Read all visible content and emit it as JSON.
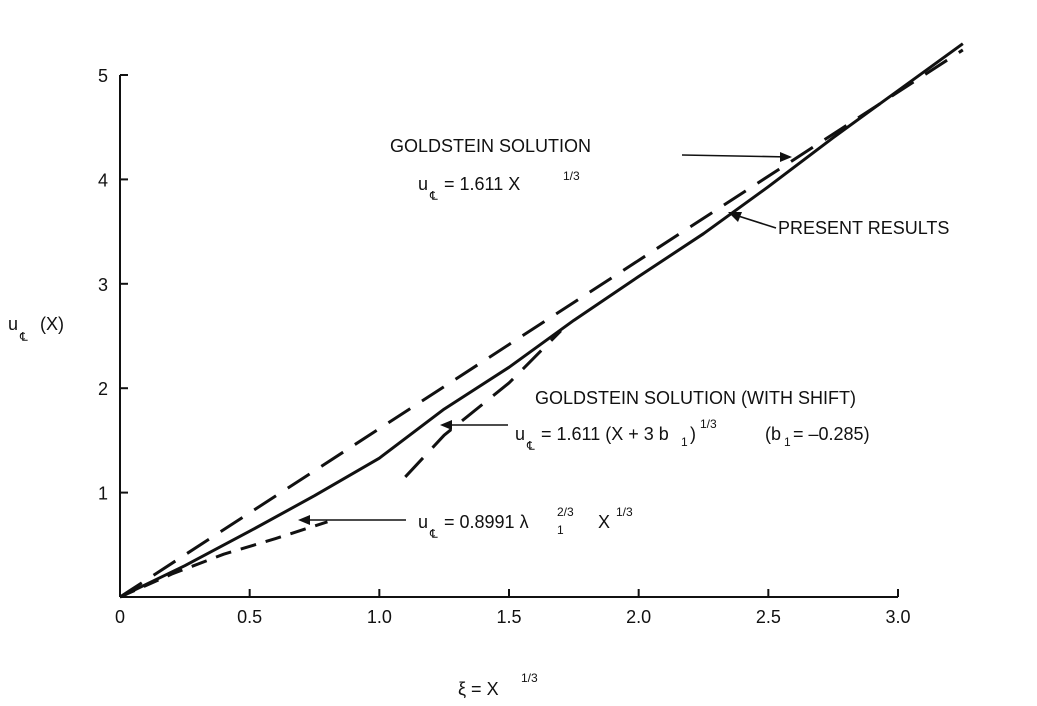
{
  "chart_data": {
    "type": "line",
    "title": "",
    "xlabel": "ξ = X",
    "xlabel_exp": "1/3",
    "ylabel": "u",
    "ylabel_tail": "(X)",
    "xlim": [
      0,
      3.0
    ],
    "ylim": [
      0,
      5
    ],
    "x_ticks": [
      "0",
      "0.5",
      "1.0",
      "1.5",
      "2.0",
      "2.5",
      "3.0"
    ],
    "x_tick_values": [
      0,
      0.5,
      1.0,
      1.5,
      2.0,
      2.5,
      3.0
    ],
    "y_ticks": [
      "1",
      "2",
      "3",
      "4",
      "5"
    ],
    "y_tick_values": [
      1,
      2,
      3,
      4,
      5
    ],
    "grid": false,
    "series": [
      {
        "style": "solid",
        "x": [
          0,
          0.25,
          0.5,
          0.75,
          1.0,
          1.25,
          1.5,
          1.75,
          2.0,
          2.25,
          2.5,
          2.75,
          3.0,
          3.25
        ],
        "y": [
          0,
          0.3,
          0.63,
          0.97,
          1.33,
          1.8,
          2.2,
          2.65,
          3.07,
          3.48,
          3.93,
          4.4,
          4.85,
          5.3
        ]
      },
      {
        "style": "dash",
        "x": [
          0,
          3.25
        ],
        "y": [
          0,
          5.24
        ]
      },
      {
        "style": "dash",
        "x": [
          1.1,
          1.25,
          1.5,
          1.7
        ],
        "y": [
          1.15,
          1.55,
          2.05,
          2.55
        ]
      },
      {
        "style": "dash-short",
        "x": [
          0,
          0.2,
          0.4,
          0.6,
          0.8
        ],
        "y": [
          0,
          0.22,
          0.41,
          0.56,
          0.72
        ]
      }
    ],
    "annotations": [
      {
        "id": "goldstein",
        "line1": "GOLDSTEIN SOLUTION",
        "eq_lhs": "u",
        "eq_rhs": " = 1.611 X",
        "eq_exp": "1/3"
      },
      {
        "id": "present",
        "line1": "PRESENT RESULTS"
      },
      {
        "id": "goldstein_shift",
        "line1": "GOLDSTEIN SOLUTION (WITH SHIFT)",
        "eq_lhs": "u",
        "eq_rhs": " = 1.611 (X + 3 b",
        "eq_sub": "1",
        "eq_close": ")",
        "eq_exp": "1/3",
        "note": "(b",
        "note_sub": "1",
        "note_rest": " = –0.285)"
      },
      {
        "id": "small",
        "eq_lhs": "u",
        "eq_rhs": " = 0.8991 λ",
        "eq_sub": "1",
        "eq_exp_a": "2/3",
        "eq_x": "X",
        "eq_exp": "1/3"
      }
    ]
  }
}
